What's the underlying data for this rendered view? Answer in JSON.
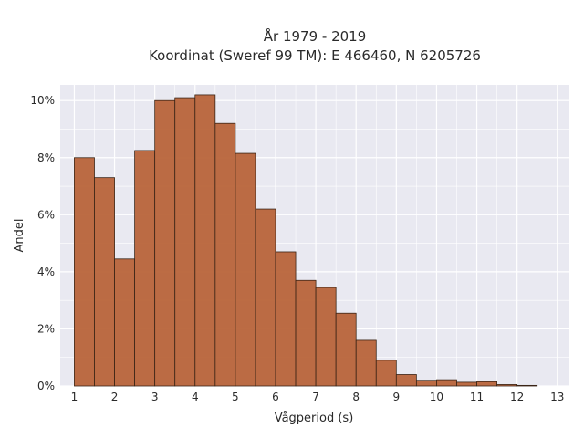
{
  "chart_data": {
    "type": "bar",
    "title_line1": "År 1979 - 2019",
    "title_line2": "Koordinat (Sweref 99 TM): E 466460, N 6205726",
    "xlabel": "Vågperiod (s)",
    "ylabel": "Andel",
    "bin_edges": [
      1.0,
      1.5,
      2.0,
      2.5,
      3.0,
      3.5,
      4.0,
      4.5,
      5.0,
      5.5,
      6.0,
      6.5,
      7.0,
      7.5,
      8.0,
      8.5,
      9.0,
      9.5,
      10.0,
      10.5,
      11.0,
      11.5,
      12.0,
      12.5
    ],
    "values": [
      8.0,
      7.3,
      4.45,
      8.25,
      10.0,
      10.1,
      10.2,
      9.2,
      8.15,
      6.2,
      4.7,
      3.7,
      3.45,
      2.55,
      1.6,
      0.9,
      0.4,
      0.2,
      0.22,
      0.13,
      0.15,
      0.05,
      0.02
    ],
    "xticks": [
      1,
      2,
      3,
      4,
      5,
      6,
      7,
      8,
      9,
      10,
      11,
      12,
      13
    ],
    "xticklabels": [
      "1",
      "2",
      "3",
      "4",
      "5",
      "6",
      "7",
      "8",
      "9",
      "10",
      "11",
      "12",
      "13"
    ],
    "yticks": [
      0,
      2,
      4,
      6,
      8,
      10
    ],
    "yticklabels": [
      "0%",
      "2%",
      "4%",
      "6%",
      "8%",
      "10%"
    ],
    "xlim": [
      0.65,
      13.3
    ],
    "ylim": [
      0,
      10.55
    ],
    "grid": true,
    "colors": {
      "bar_fill": "#b8643a",
      "bar_edge": "#3a2416",
      "plot_background": "#e9e9f1",
      "grid": "#ffffff"
    }
  }
}
